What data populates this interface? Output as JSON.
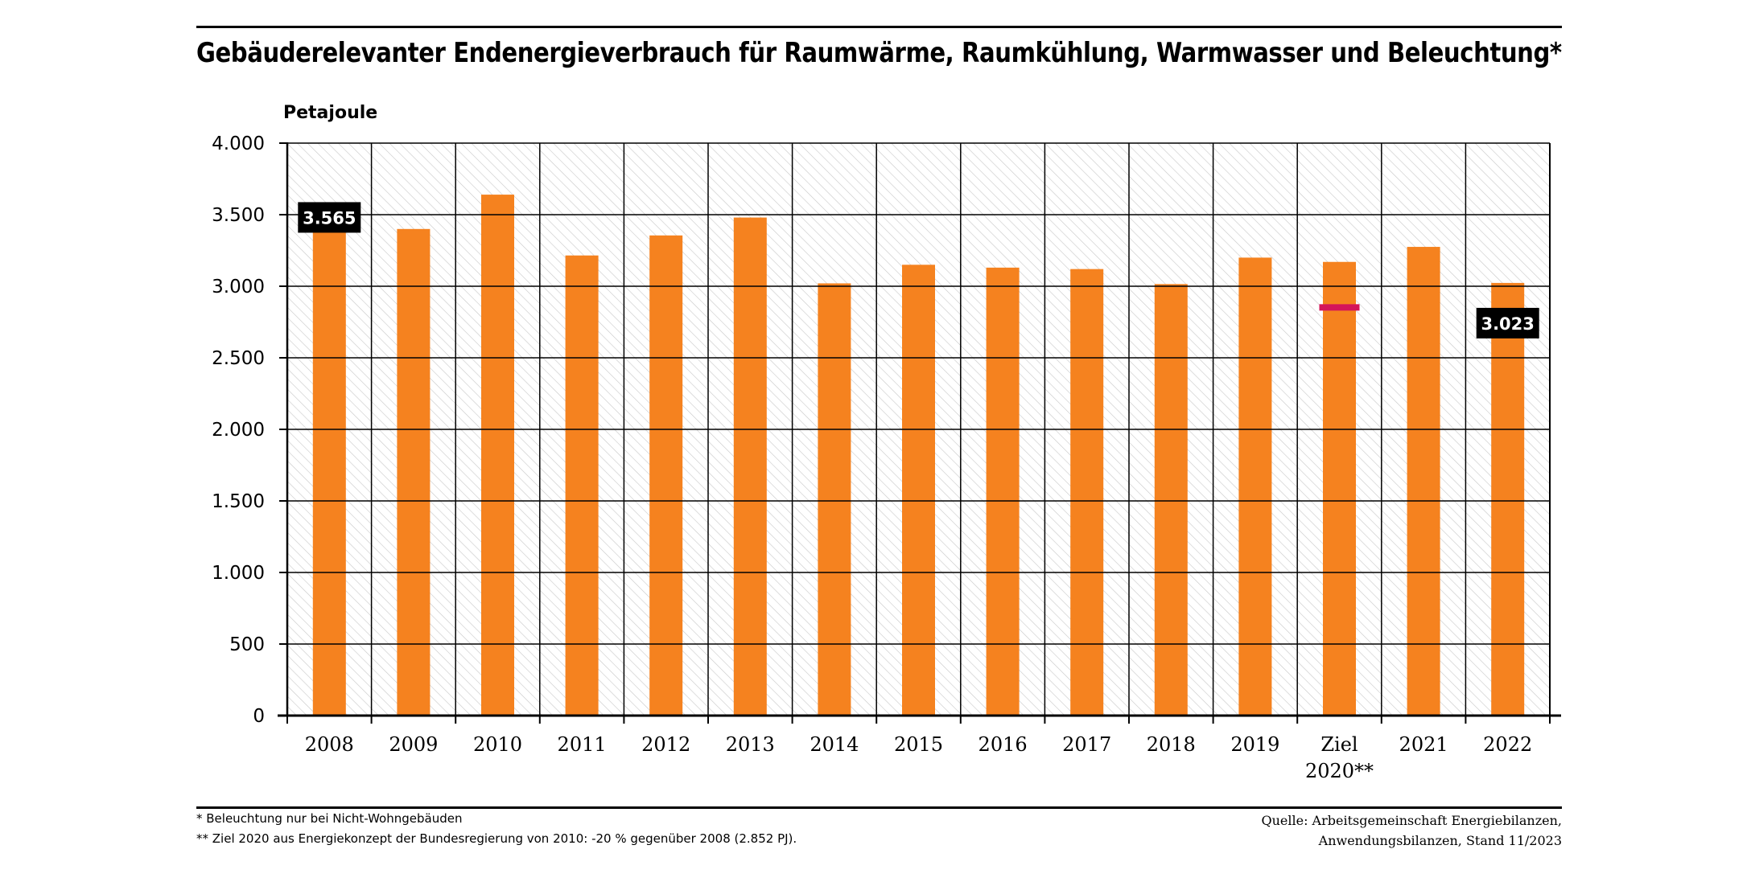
{
  "header": {
    "title": "Gebäuderelevanter Endenergieverbrauch für Raumwärme, Raumkühlung, Warmwasser und Beleuchtung*"
  },
  "chart_data": {
    "type": "bar",
    "title": "Gebäuderelevanter Endenergieverbrauch für Raumwärme, Raumkühlung, Warmwasser und Beleuchtung*",
    "ylabel": "Petajoule",
    "xlabel": "",
    "ylim": [
      0,
      4000
    ],
    "yticks": [
      0,
      500,
      1000,
      1500,
      2000,
      2500,
      3000,
      3500,
      4000
    ],
    "ytick_labels": [
      "0",
      "500",
      "1.000",
      "1.500",
      "2.000",
      "2.500",
      "3.000",
      "3.500",
      "4.000"
    ],
    "categories": [
      "2008",
      "2009",
      "2010",
      "2011",
      "2012",
      "2013",
      "2014",
      "2015",
      "2016",
      "2017",
      "2018",
      "2019",
      "Ziel 2020**",
      "2021",
      "2022"
    ],
    "category_labels": [
      [
        "2008"
      ],
      [
        "2009"
      ],
      [
        "2010"
      ],
      [
        "2011"
      ],
      [
        "2012"
      ],
      [
        "2013"
      ],
      [
        "2014"
      ],
      [
        "2015"
      ],
      [
        "2016"
      ],
      [
        "2017"
      ],
      [
        "2018"
      ],
      [
        "2019"
      ],
      [
        "Ziel",
        "2020**"
      ],
      [
        "2021"
      ],
      [
        "2022"
      ]
    ],
    "values": [
      3565,
      3400,
      3640,
      3215,
      3355,
      3480,
      3020,
      3150,
      3130,
      3120,
      3015,
      3200,
      3170,
      3275,
      3023
    ],
    "target": {
      "category": "Ziel 2020**",
      "value": 2852
    },
    "data_labels": [
      {
        "category": "2008",
        "text": "3.565"
      },
      {
        "category": "2022",
        "text": "3.023"
      }
    ],
    "grid": true,
    "legend": "none",
    "colors": {
      "bar": "#f5821f",
      "target": "#d4145a",
      "grid": "#000000",
      "hatch": "#c8c8c8",
      "label_bg": "#000000"
    }
  },
  "footnotes": [
    "* Beleuchtung nur bei Nicht-Wohngebäuden",
    "**  Ziel 2020 aus Energiekonzept der Bundesregierung von 2010: -20 % gegenüber 2008 (2.852 PJ)."
  ],
  "source": [
    "Quelle: Arbeitsgemeinschaft Energiebilanzen,",
    "Anwendungsbilanzen, Stand 11/2023"
  ]
}
